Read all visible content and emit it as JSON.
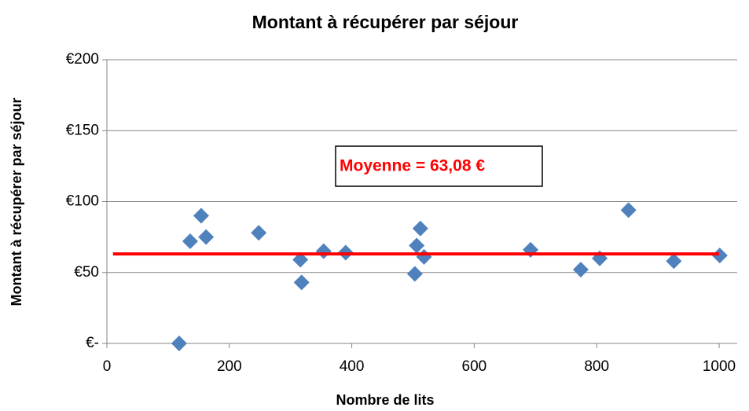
{
  "chart_data": {
    "type": "scatter",
    "title": "Montant à récupérer par séjour",
    "x_label": "Nombre de lits",
    "y_label": "Montant à récupérer par séjour",
    "series": [
      {
        "name": "Montant",
        "color": "#4f81bd",
        "x": [
          118,
          136,
          154,
          162,
          248,
          316,
          318,
          354,
          390,
          503,
          506,
          512,
          518,
          692,
          774,
          805,
          852,
          926,
          1001
        ],
        "values": [
          0,
          72,
          90,
          75,
          78,
          59,
          43,
          65,
          64,
          49,
          69,
          81,
          61,
          66,
          52,
          60,
          94,
          58,
          62
        ]
      }
    ],
    "mean_line": {
      "value": 63.08,
      "x": [
        10,
        1000
      ],
      "color": "#ff0000"
    },
    "annotation": "Moyenne = 63,08 €",
    "xlim": [
      0,
      1000
    ],
    "xticks": [
      0,
      200,
      400,
      600,
      800,
      1000
    ],
    "ylim": [
      0,
      200
    ],
    "yticks": [
      {
        "value": 0,
        "label": "€-"
      },
      {
        "value": 50,
        "label": "€50"
      },
      {
        "value": 100,
        "label": "€100"
      },
      {
        "value": 150,
        "label": "€150"
      },
      {
        "value": 200,
        "label": "€200"
      }
    ],
    "grid": true
  }
}
